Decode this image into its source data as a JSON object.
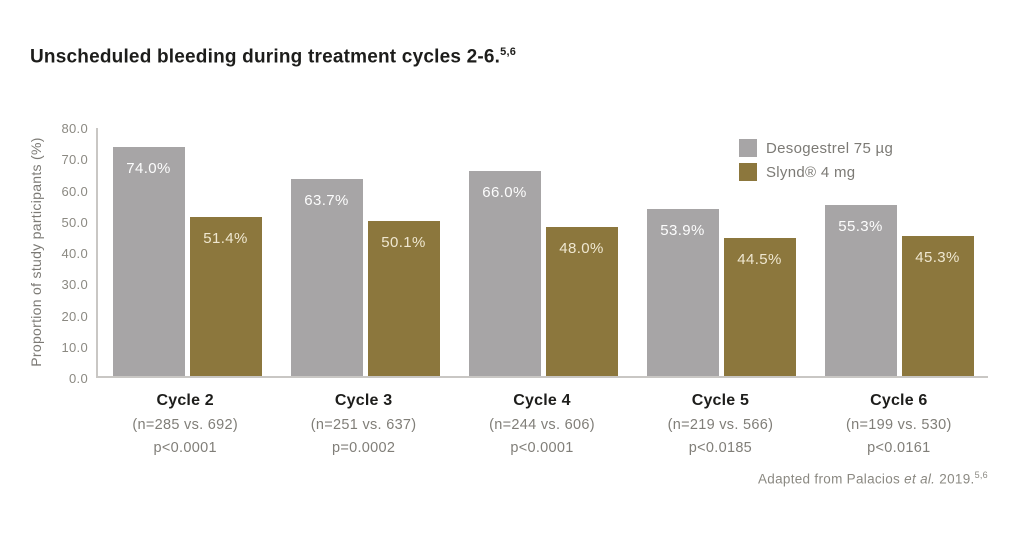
{
  "header": {
    "title": "Unscheduled bleeding during treatment cycles 2-6.",
    "title_superscript": "5,6"
  },
  "chart_data": {
    "type": "bar",
    "title": "Unscheduled bleeding during treatment cycles 2-6.",
    "ylabel": "Proportion of study participants (%)",
    "xlabel": "",
    "ylim": [
      0,
      80
    ],
    "grid": false,
    "legend_position": "top-right-inside",
    "yticks": [
      0,
      10,
      20,
      30,
      40,
      50,
      60,
      70,
      80
    ],
    "ytick_labels": [
      "0.0",
      "10.0",
      "20.0",
      "30.0",
      "40.0",
      "50.0",
      "60.0",
      "70.0",
      "80.0"
    ],
    "categories": [
      "Cycle 2",
      "Cycle 3",
      "Cycle 4",
      "Cycle 5",
      "Cycle 6"
    ],
    "n_labels": [
      "(n=285 vs. 692)",
      "(n=251 vs. 637)",
      "(n=244 vs. 606)",
      "(n=219 vs. 566)",
      "(n=199 vs. 530)"
    ],
    "p_labels": [
      "p<0.0001",
      "p=0.0002",
      "p<0.0001",
      "p<0.0185",
      "p<0.0161"
    ],
    "series": [
      {
        "name": "Desogestrel 75 µg",
        "color": "#a7a5a6",
        "label_color": "#fdfdfd",
        "values": [
          74.0,
          63.7,
          66.0,
          53.9,
          55.3
        ],
        "labels": [
          "74.0%",
          "63.7%",
          "66.0%",
          "53.9%",
          "55.3%"
        ]
      },
      {
        "name": "Slynd® 4 mg",
        "color": "#8c773d",
        "label_color": "#efe7d0",
        "values": [
          51.4,
          50.1,
          48.0,
          44.5,
          45.3
        ],
        "labels": [
          "51.4%",
          "50.1%",
          "48.0%",
          "44.5%",
          "45.3%"
        ]
      }
    ],
    "axis_color": "#c9c7c4",
    "tick_text_color": "#8b8982"
  },
  "footer": {
    "prefix": "Adapted from Palacios ",
    "italic": "et al.",
    "suffix": " 2019.",
    "superscript": "5,6"
  }
}
